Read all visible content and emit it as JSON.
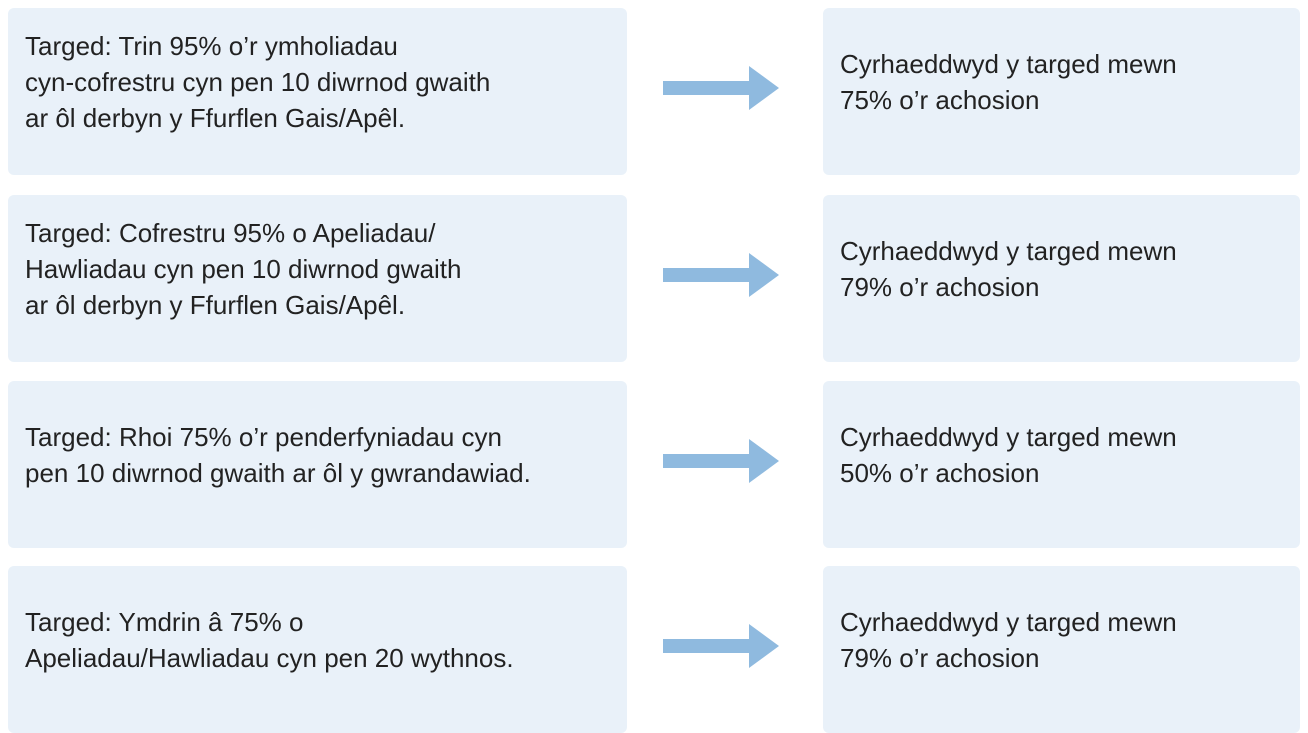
{
  "rows": [
    {
      "target": [
        "Targed: Trin 95% o’r ymholiadau",
        "cyn-cofrestru cyn pen 10 diwrnod gwaith",
        "ar ôl derbyn y Ffurflen Gais/Apêl."
      ],
      "result": [
        "Cyrhaeddwyd y targed mewn",
        "75% o’r achosion"
      ]
    },
    {
      "target": [
        "Targed: Cofrestru 95% o Apeliadau/",
        "Hawliadau cyn pen 10 diwrnod gwaith",
        "ar ôl derbyn y Ffurflen Gais/Apêl."
      ],
      "result": [
        "Cyrhaeddwyd y targed mewn",
        "79% o’r achosion"
      ]
    },
    {
      "target": [
        "Targed: Rhoi 75% o’r penderfyniadau cyn",
        "pen 10 diwrnod gwaith ar ôl y gwrandawiad."
      ],
      "result": [
        "Cyrhaeddwyd y targed mewn",
        "50% o’r achosion"
      ]
    },
    {
      "target": [
        "Targed: Ymdrin â 75% o",
        "Apeliadau/Hawliadau cyn pen 20 wythnos."
      ],
      "result": [
        "Cyrhaeddwyd y targed mewn",
        "79% o’r achosion"
      ]
    }
  ]
}
